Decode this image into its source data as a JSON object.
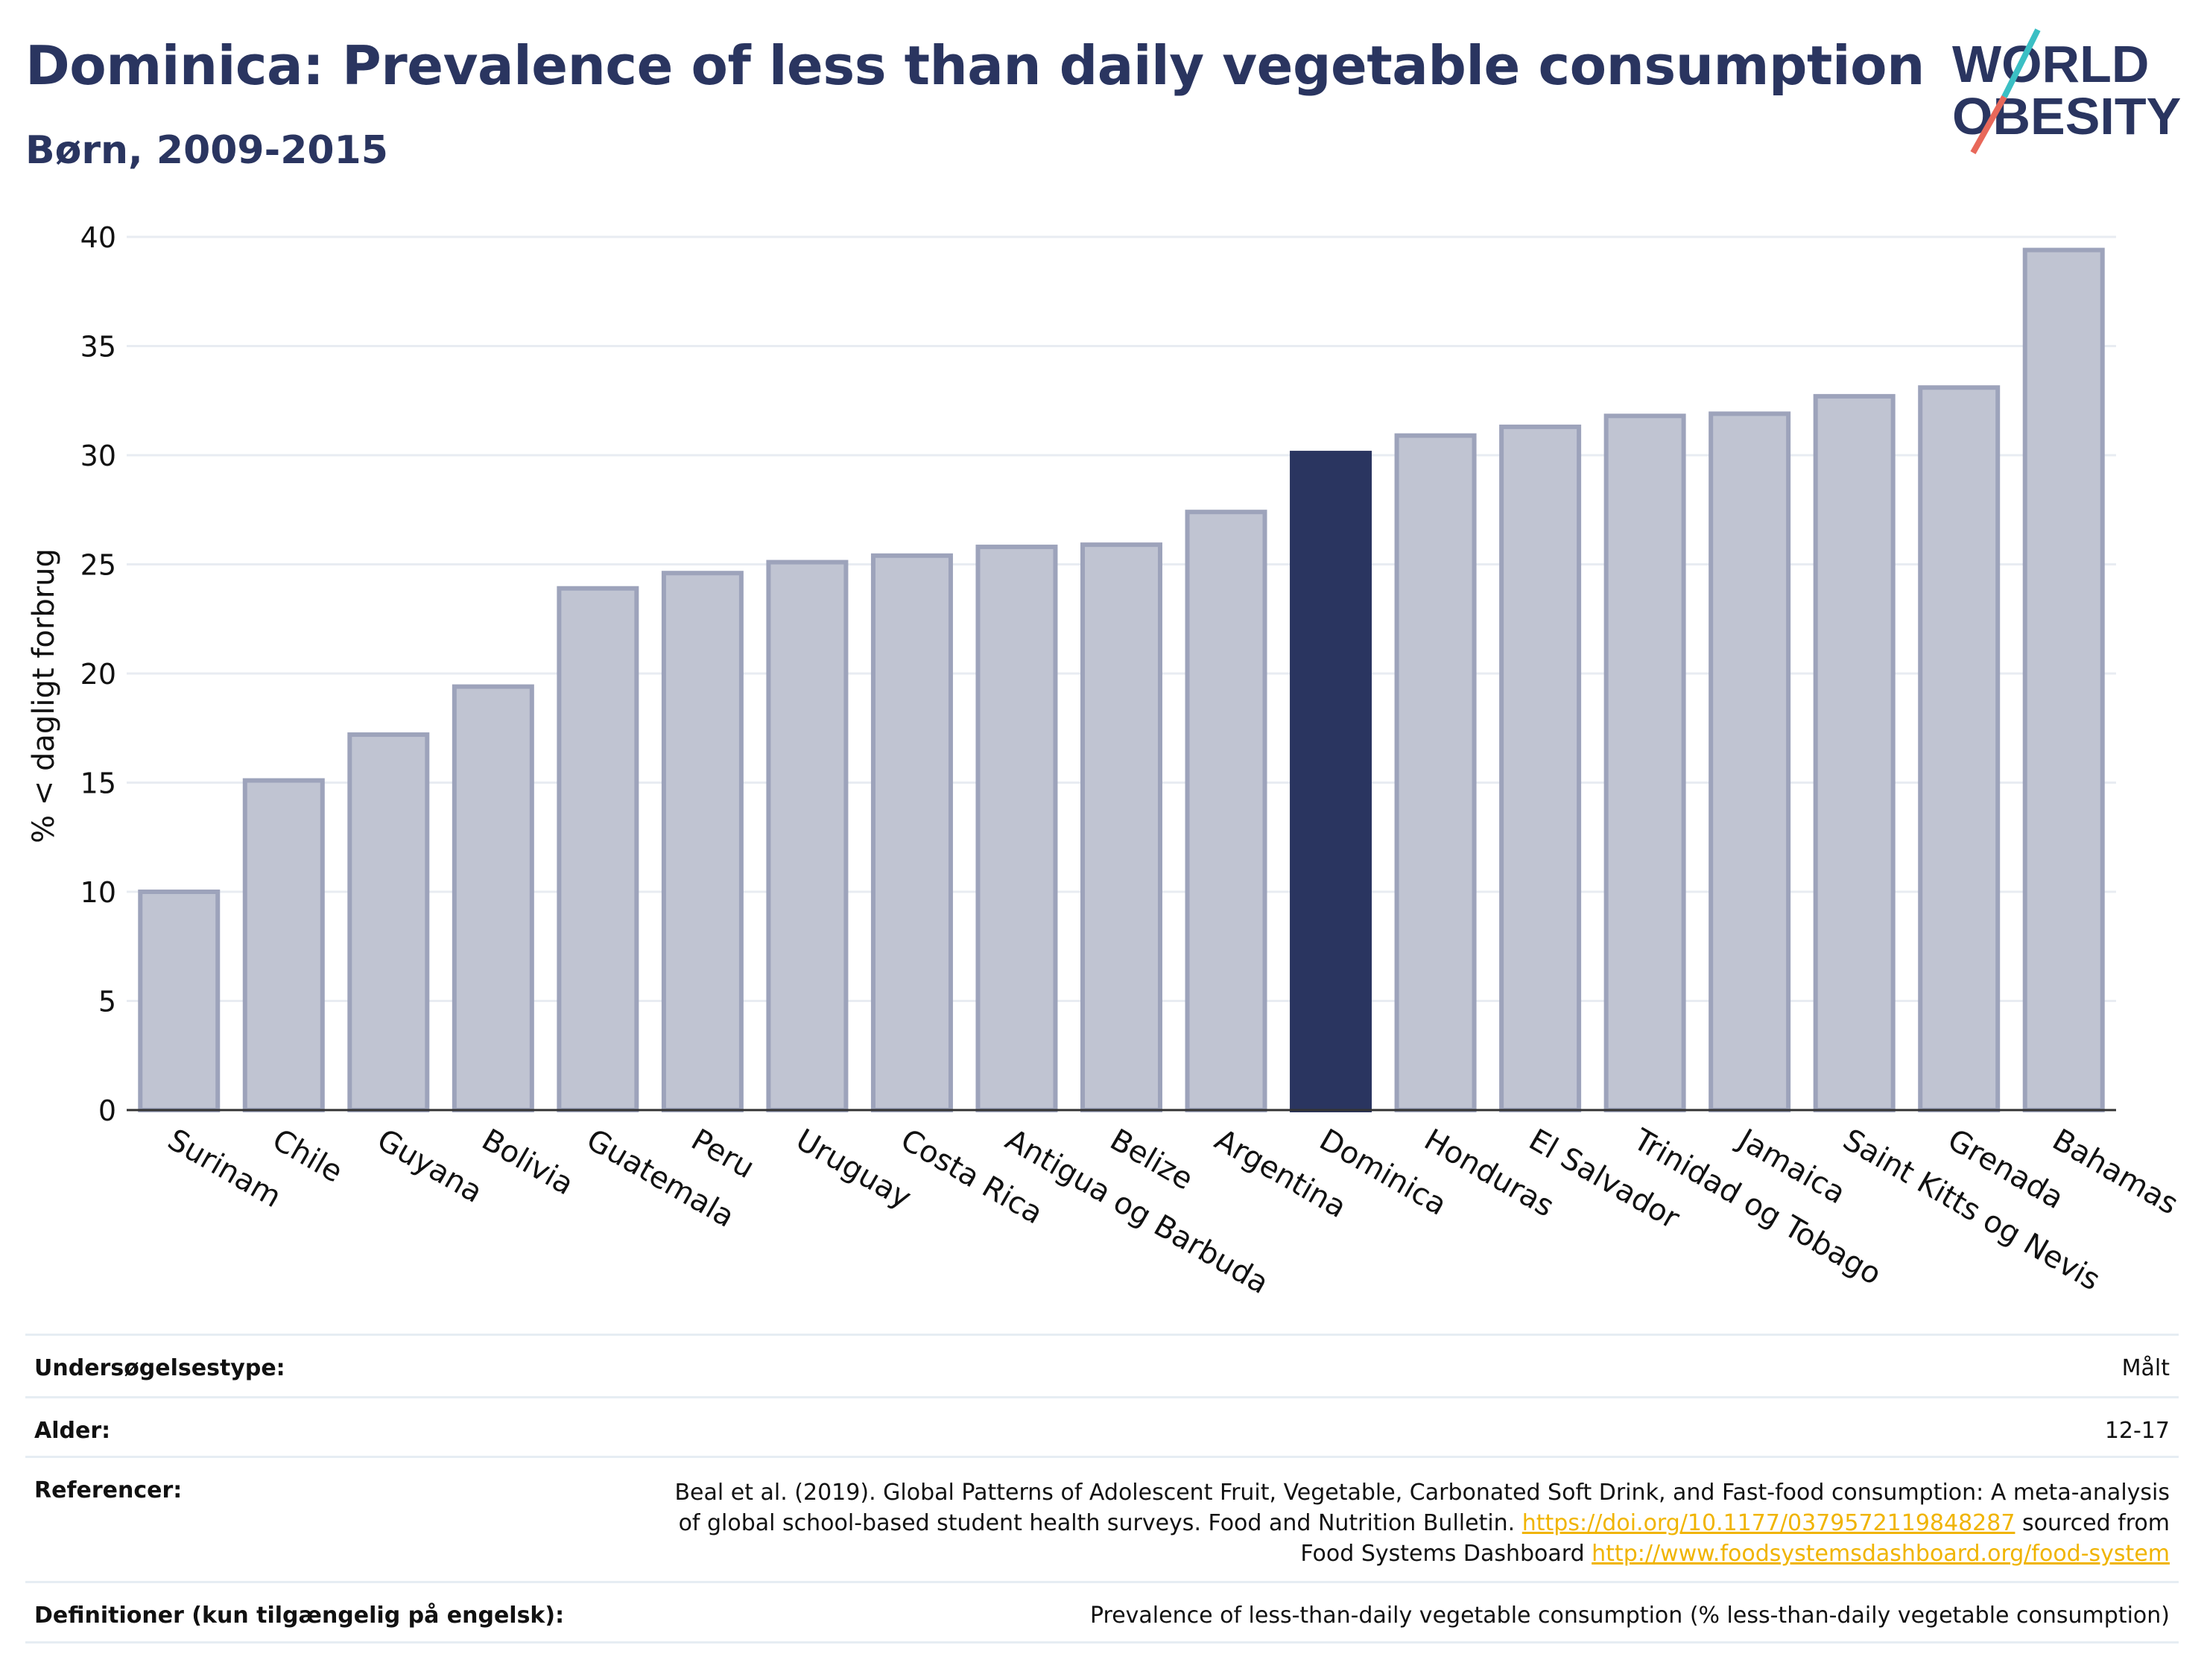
{
  "header": {
    "title": "Dominica: Prevalence of less than daily vegetable consumption",
    "subtitle": "Børn, 2009-2015"
  },
  "logo": {
    "text_line1": "WORLD",
    "text_line2": "OBESITY",
    "colors": {
      "text": "#2a3560",
      "slash_top": "#3bbfc4",
      "slash_bottom": "#e8685a"
    }
  },
  "chart_data": {
    "type": "bar",
    "title": "Dominica: Prevalence of less than daily vegetable consumption",
    "subtitle": "Børn, 2009-2015",
    "xlabel": "",
    "ylabel": "% < dagligt forbrug",
    "ylim": [
      0,
      40
    ],
    "yticks": [
      0,
      5,
      10,
      15,
      20,
      25,
      30,
      35,
      40
    ],
    "grid": true,
    "highlight": "Dominica",
    "colors": {
      "bar": "#c0c4d2",
      "bar_edge": "#9da3bb",
      "highlight": "#2a3560",
      "grid": "#e8ecf2"
    },
    "categories": [
      "Surinam",
      "Chile",
      "Guyana",
      "Bolivia",
      "Guatemala",
      "Peru",
      "Uruguay",
      "Costa Rica",
      "Antigua og Barbuda",
      "Belize",
      "Argentina",
      "Dominica",
      "Honduras",
      "El Salvador",
      "Trinidad og Tobago",
      "Jamaica",
      "Saint Kitts og Nevis",
      "Grenada",
      "Bahamas"
    ],
    "values": [
      10.0,
      15.1,
      17.2,
      19.4,
      23.9,
      24.6,
      25.1,
      25.4,
      25.8,
      25.9,
      27.4,
      30.1,
      30.9,
      31.3,
      31.8,
      31.9,
      32.7,
      33.1,
      39.4
    ]
  },
  "info": {
    "survey_label": "Undersøgelsestype:",
    "survey_value": "Målt",
    "age_label": "Alder:",
    "age_value": "12-17",
    "ref_label": "Referencer:",
    "ref_line1": "Beal et al. (2019). Global Patterns of Adolescent Fruit, Vegetable, Carbonated Soft Drink, and Fast-food consumption: A meta-analysis",
    "ref_line2_pre": "of global school-based student health surveys. Food and Nutrition Bulletin. ",
    "ref_link1": "https://doi.org/10.1177/0379572119848287",
    "ref_line2_post": " sourced from",
    "ref_line3_pre": "Food Systems Dashboard ",
    "ref_link2": "http://www.foodsystemsdashboard.org/food-system",
    "def_label": "Definitioner (kun tilgængelig på engelsk):",
    "def_value": "Prevalence of less-than-daily vegetable consumption (% less-than-daily vegetable consumption)"
  }
}
